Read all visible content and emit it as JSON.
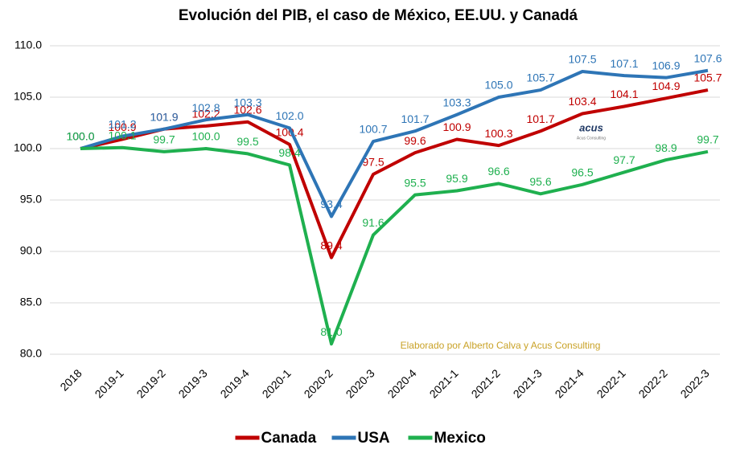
{
  "chart_data": {
    "type": "line",
    "title": "Evolución del PIB, el caso de México, EE.UU. y Canadá",
    "annotation": "Elaborado por Alberto Calva y Acus Consulting",
    "logo": "acus",
    "logo_subtitle": "Acus Consulting",
    "categories": [
      "2018",
      "2019-1",
      "2019-2",
      "2019-3",
      "2019-4",
      "2020-1",
      "2020-2",
      "2020-3",
      "2020-4",
      "2021-1",
      "2021-2",
      "2021-3",
      "2021-4",
      "2022-1",
      "2022-2",
      "2022-3"
    ],
    "series": [
      {
        "name": "Canada",
        "color": "#c00000",
        "values": [
          100.0,
          100.9,
          101.9,
          102.2,
          102.6,
          100.4,
          89.4,
          97.5,
          99.6,
          100.9,
          100.3,
          101.7,
          103.4,
          104.1,
          104.9,
          105.7
        ],
        "value_labels": [
          "100.0",
          "100.9",
          "101.9",
          "102.2",
          "102.6",
          "100.4",
          "89.4",
          "97.5",
          "99.6",
          "100.9",
          "100.3",
          "101.7",
          "103.4",
          "104.1",
          "104.9",
          "105.7"
        ]
      },
      {
        "name": "USA",
        "color": "#2e75b6",
        "values": [
          100.0,
          101.2,
          101.9,
          102.8,
          103.3,
          102.0,
          93.4,
          100.7,
          101.7,
          103.3,
          105.0,
          105.7,
          107.5,
          107.1,
          106.9,
          107.6
        ],
        "value_labels": [
          "100.0",
          "101.2",
          "101.9",
          "102.8",
          "103.3",
          "102.0",
          "93.4",
          "100.7",
          "101.7",
          "103.3",
          "105.0",
          "105.7",
          "107.5",
          "107.1",
          "106.9",
          "107.6"
        ]
      },
      {
        "name": "Mexico",
        "color": "#1fb04f",
        "values": [
          100.0,
          100.1,
          99.7,
          100.0,
          99.5,
          98.4,
          81.0,
          91.6,
          95.5,
          95.9,
          96.6,
          95.6,
          96.5,
          97.7,
          98.9,
          99.7
        ],
        "value_labels": [
          "100.0",
          "100.1",
          "99.7",
          "100.0",
          "99.5",
          "98.4",
          "81.0",
          "91.6",
          "95.5",
          "95.9",
          "96.6",
          "95.6",
          "96.5",
          "97.7",
          "98.9",
          "99.7"
        ]
      }
    ],
    "ylim": [
      80,
      110
    ],
    "yticks": [
      {
        "value": 80,
        "label": "80.0"
      },
      {
        "value": 85,
        "label": "85.0"
      },
      {
        "value": 90,
        "label": "90.0"
      },
      {
        "value": 95,
        "label": "95.0"
      },
      {
        "value": 100,
        "label": "100.0"
      },
      {
        "value": 105,
        "label": "105.0"
      },
      {
        "value": 110,
        "label": "110.0"
      }
    ],
    "grid": true
  }
}
